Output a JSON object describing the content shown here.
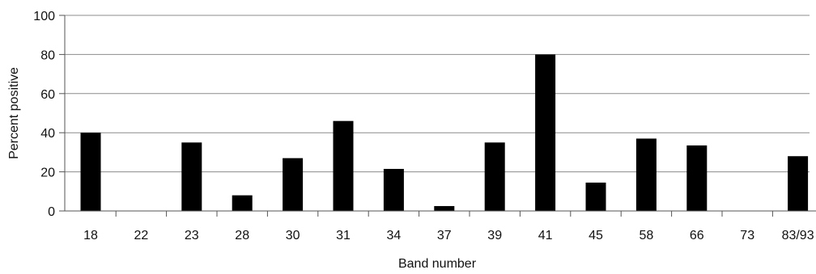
{
  "chart_data": {
    "type": "bar",
    "title": "",
    "xlabel": "Band number",
    "ylabel": "Percent positive",
    "categories": [
      "18",
      "22",
      "23",
      "28",
      "30",
      "31",
      "34",
      "37",
      "39",
      "41",
      "45",
      "58",
      "66",
      "73",
      "83/93"
    ],
    "values": [
      40,
      0,
      35,
      8,
      27,
      46,
      21.5,
      2.5,
      35,
      80,
      14.5,
      37,
      33.5,
      0,
      28
    ],
    "ylim": [
      0,
      100
    ],
    "yticks": [
      0,
      20,
      40,
      60,
      80,
      100
    ],
    "grid": true,
    "legend": "none",
    "colors": {
      "bar": "#000000",
      "grid": "#8c8c8c",
      "axis": "#555555",
      "text": "#111111"
    }
  }
}
